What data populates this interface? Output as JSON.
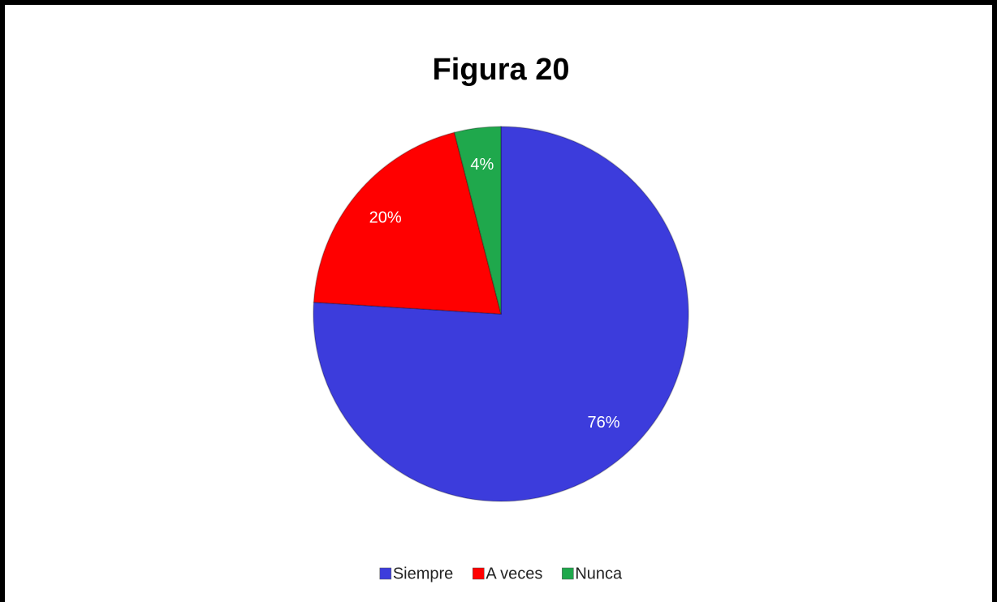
{
  "chart_data": {
    "type": "pie",
    "title": "Figura 20",
    "categories": [
      "Siempre",
      "A veces",
      "Nunca"
    ],
    "values": [
      76,
      20,
      4
    ],
    "value_labels": [
      "76%",
      "20%",
      "4%"
    ],
    "colors": [
      "#3c3cdc",
      "#ff0000",
      "#1fa84c"
    ],
    "legend": "bottom"
  }
}
